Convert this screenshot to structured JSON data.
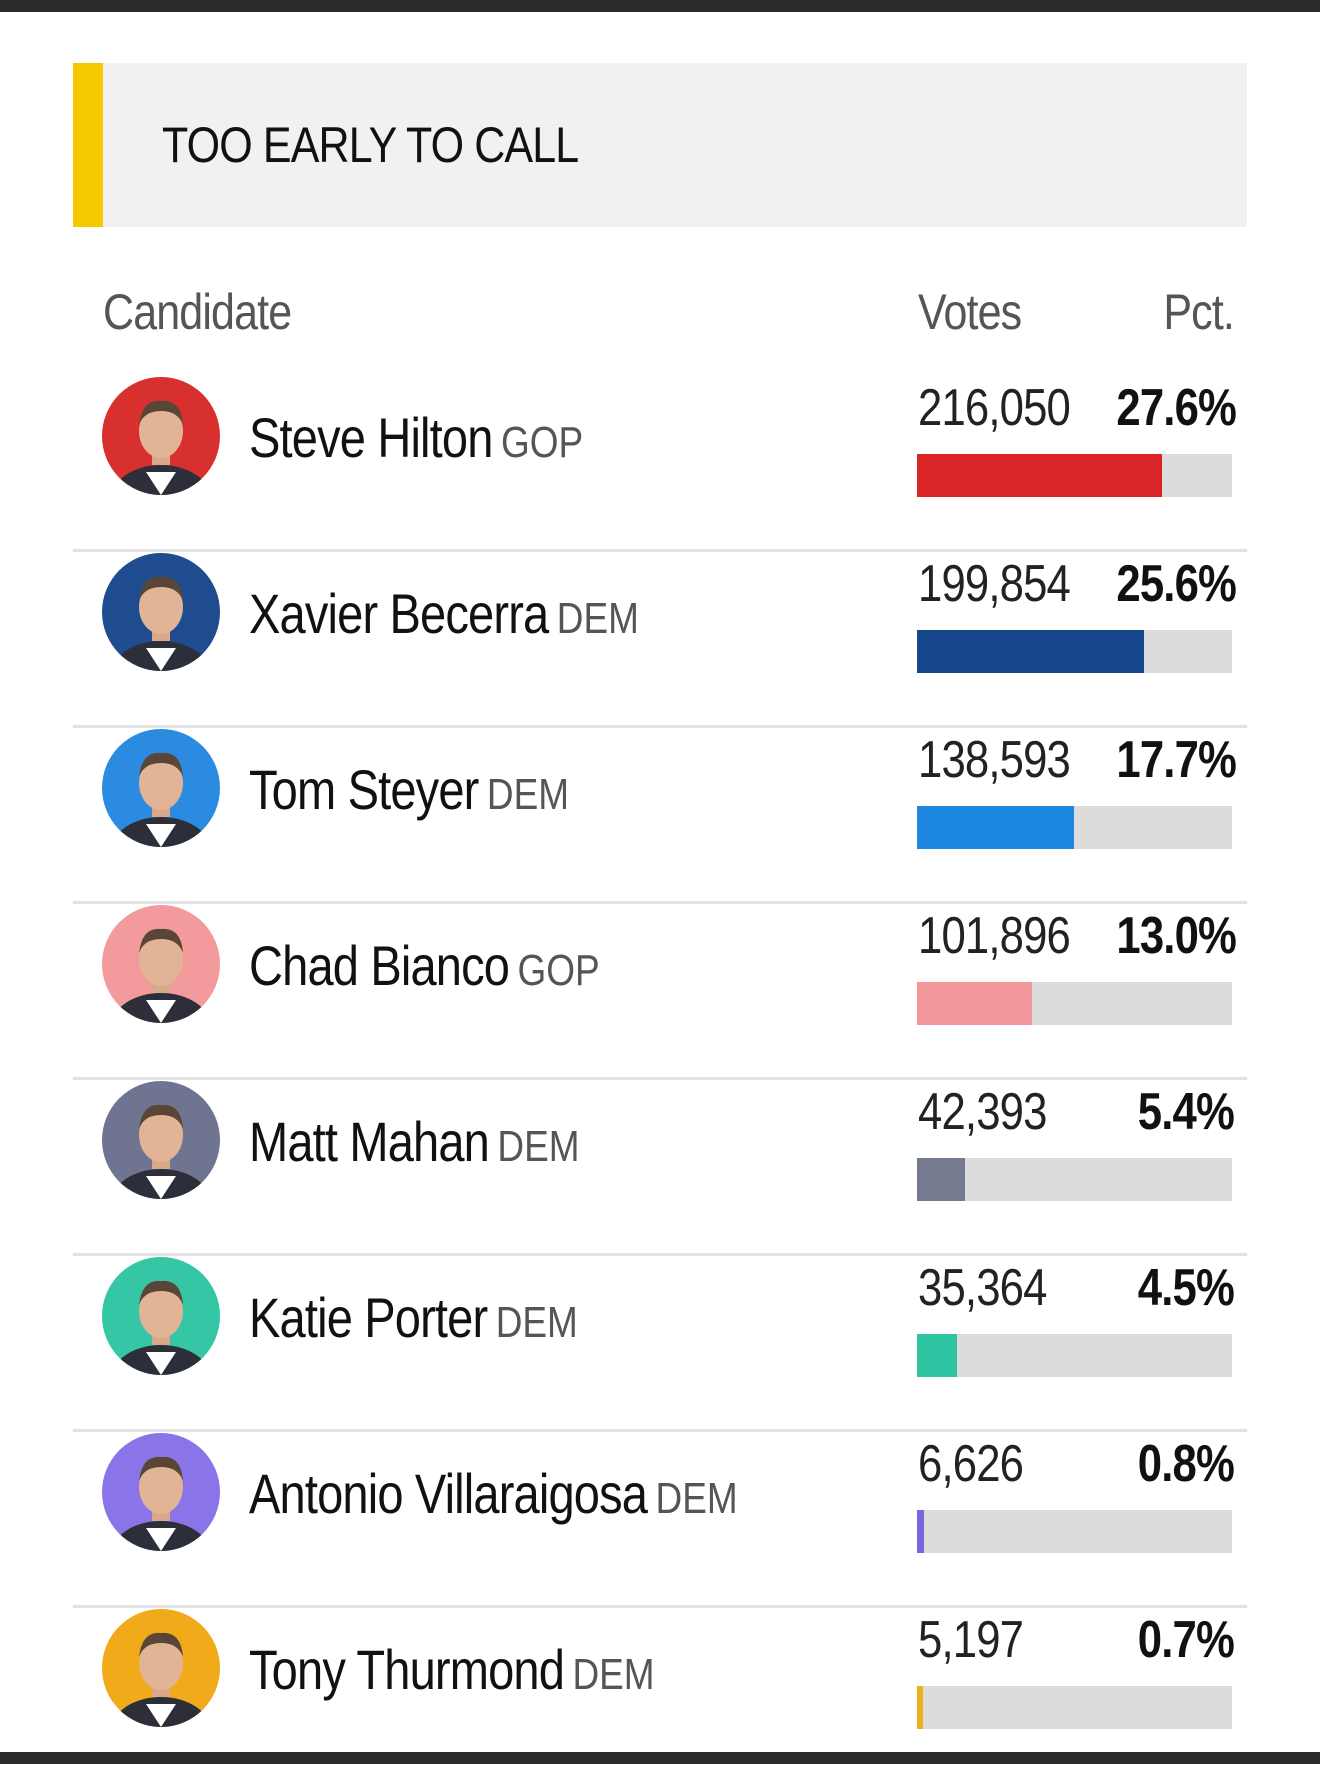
{
  "status": {
    "text": "TOO EARLY TO CALL",
    "accent_color": "#f5c800"
  },
  "columns": {
    "candidate": "Candidate",
    "votes": "Votes",
    "pct": "Pct."
  },
  "candidates": [
    {
      "name": "Steve Hilton",
      "party": "GOP",
      "votes": "216,050",
      "pct": "27.6%",
      "share": 0.276,
      "color": "#d92525",
      "avatar_bg": "#d8302e",
      "avatar_icon": "steve-hilton-photo"
    },
    {
      "name": "Xavier Becerra",
      "party": "DEM",
      "votes": "199,854",
      "pct": "25.6%",
      "share": 0.256,
      "color": "#16468c",
      "avatar_bg": "#1f4c8f",
      "avatar_icon": "xavier-becerra-photo"
    },
    {
      "name": "Tom Steyer",
      "party": "DEM",
      "votes": "138,593",
      "pct": "17.7%",
      "share": 0.177,
      "color": "#1e88e0",
      "avatar_bg": "#2a8be0",
      "avatar_icon": "tom-steyer-photo"
    },
    {
      "name": "Chad Bianco",
      "party": "GOP",
      "votes": "101,896",
      "pct": "13.0%",
      "share": 0.13,
      "color": "#f1969a",
      "avatar_bg": "#f29a9c",
      "avatar_icon": "chad-bianco-photo"
    },
    {
      "name": "Matt Mahan",
      "party": "DEM",
      "votes": "42,393",
      "pct": "5.4%",
      "share": 0.054,
      "color": "#757a90",
      "avatar_bg": "#6f7590",
      "avatar_icon": "matt-mahan-photo"
    },
    {
      "name": "Katie Porter",
      "party": "DEM",
      "votes": "35,364",
      "pct": "4.5%",
      "share": 0.045,
      "color": "#2fc4a2",
      "avatar_bg": "#35c6a6",
      "avatar_icon": "katie-porter-photo"
    },
    {
      "name": "Antonio Villaraigosa",
      "party": "DEM",
      "votes": "6,626",
      "pct": "0.8%",
      "share": 0.008,
      "color": "#7c66e0",
      "avatar_bg": "#8a74e8",
      "avatar_icon": "antonio-villaraigosa-photo"
    },
    {
      "name": "Tony Thurmond",
      "party": "DEM",
      "votes": "5,197",
      "pct": "0.7%",
      "share": 0.007,
      "color": "#e8b21c",
      "avatar_bg": "#f0aa1a",
      "avatar_icon": "tony-thurmond-photo"
    }
  ]
}
